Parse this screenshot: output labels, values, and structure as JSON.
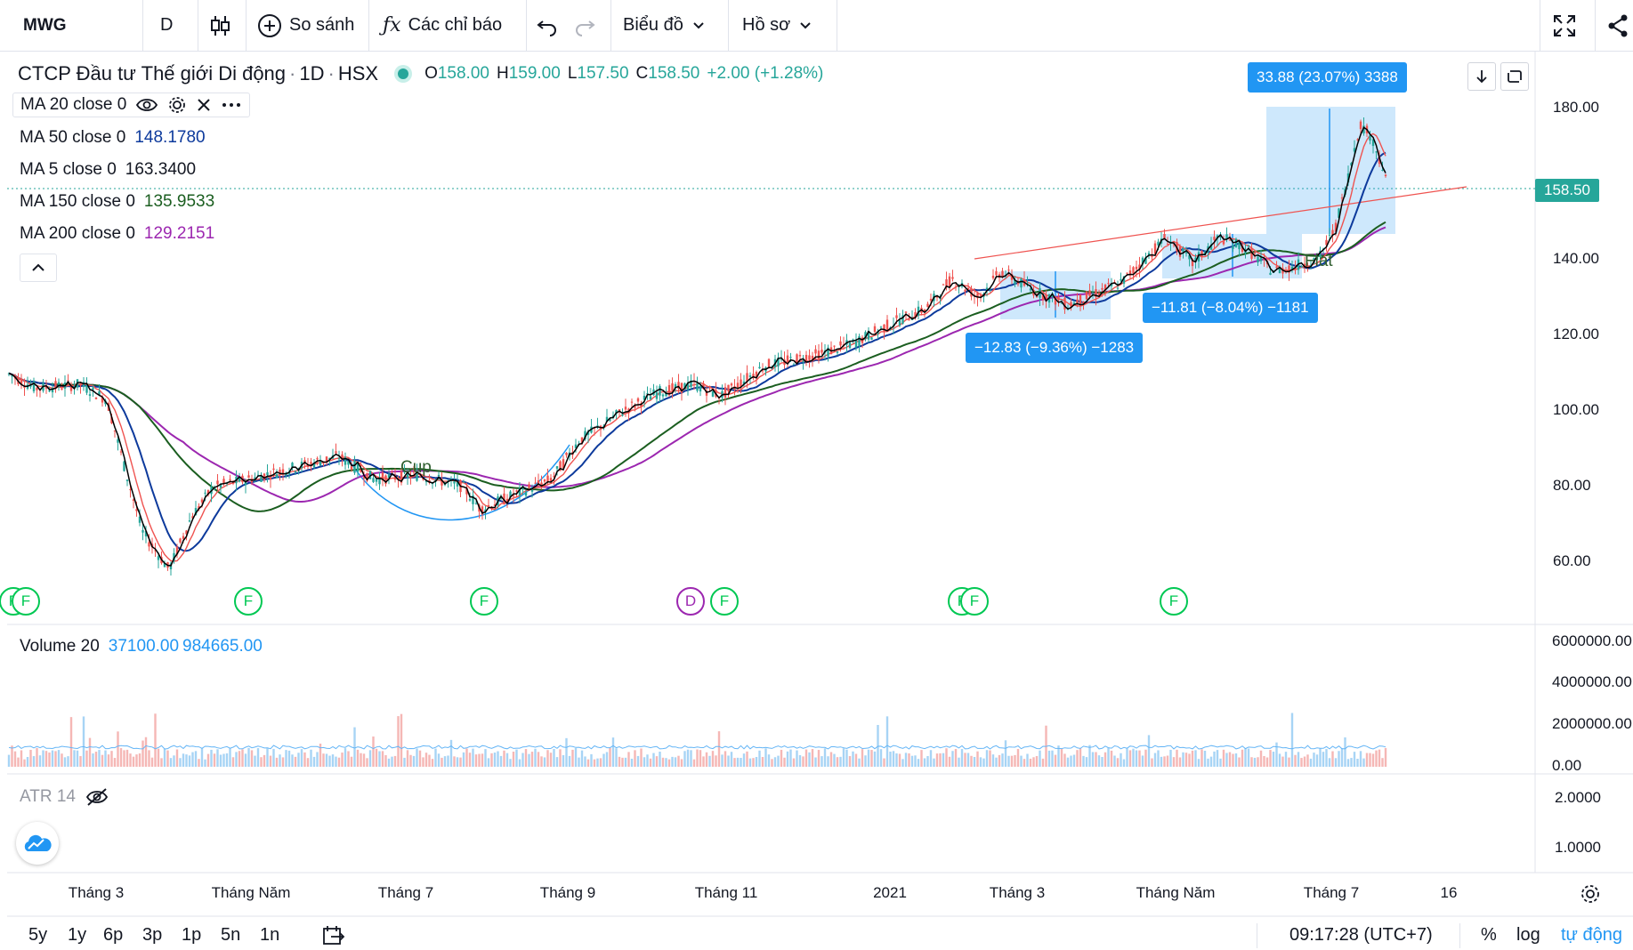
{
  "toolbar": {
    "symbol": "MWG",
    "interval": "D",
    "compare_label": "So sánh",
    "indicators_label": "Các chỉ báo",
    "chart_type_label": "Biểu đồ",
    "profile_label": "Hồ sơ"
  },
  "header": {
    "title": "CTCP Đầu tư Thế giới Di động",
    "interval": "1D",
    "exchange": "HSX",
    "o_label": "O",
    "o_value": "158.00",
    "h_label": "H",
    "h_value": "159.00",
    "l_label": "L",
    "l_value": "157.50",
    "c_label": "C",
    "c_value": "158.50",
    "change": "+2.00 (+1.28%)"
  },
  "legend": {
    "ma20": "MA 20 close 0",
    "ma50": "MA 50 close 0",
    "ma50_value": "148.1780",
    "ma5": "MA 5 close 0",
    "ma5_value": "163.3400",
    "ma150": "MA 150 close 0",
    "ma150_value": "135.9533",
    "ma200": "MA 200 close 0",
    "ma200_value": "129.2151"
  },
  "volume_legend": {
    "label": "Volume 20",
    "value1": "37100.00",
    "value2": "984665.00"
  },
  "atr_legend": {
    "label": "ATR 14"
  },
  "measure_tags": {
    "top": "33.88 (23.07%) 3388",
    "left": "−12.83 (−9.36%) −1283",
    "right": "−11.81 (−8.04%) −1181"
  },
  "annotations": {
    "cup": "Cup",
    "flat": "Flat"
  },
  "price_tag": "158.50",
  "price_axis": [
    "180.00",
    "140.00",
    "120.00",
    "100.00",
    "80.00",
    "60.00"
  ],
  "volume_axis": [
    "6000000.00",
    "4000000.00",
    "2000000.00",
    "0.00"
  ],
  "atr_axis": [
    "2.0000",
    "1.0000"
  ],
  "time_axis": [
    "Tháng 3",
    "Tháng Năm",
    "Tháng 7",
    "Tháng 9",
    "Tháng 11",
    "2021",
    "Tháng 3",
    "Tháng Năm",
    "Tháng 7",
    "16"
  ],
  "events": [
    "F",
    "F",
    "F",
    "F",
    "D",
    "F",
    "F",
    "F",
    "F"
  ],
  "ranges": [
    "5y",
    "1y",
    "6p",
    "3p",
    "1p",
    "5n",
    "1n"
  ],
  "clock": "09:17:28 (UTC+7)",
  "percent_label": "%",
  "log_label": "log",
  "auto_label": "tự động",
  "colors": {
    "up": "#26a69a",
    "down": "#ef5350",
    "ma5": "#000000",
    "ma20": "#ef5350",
    "ma50": "#0d3a9c",
    "ma150": "#1b5e20",
    "ma200": "#9c27b0",
    "measure": "#2196f3",
    "event": "#00c853"
  }
}
